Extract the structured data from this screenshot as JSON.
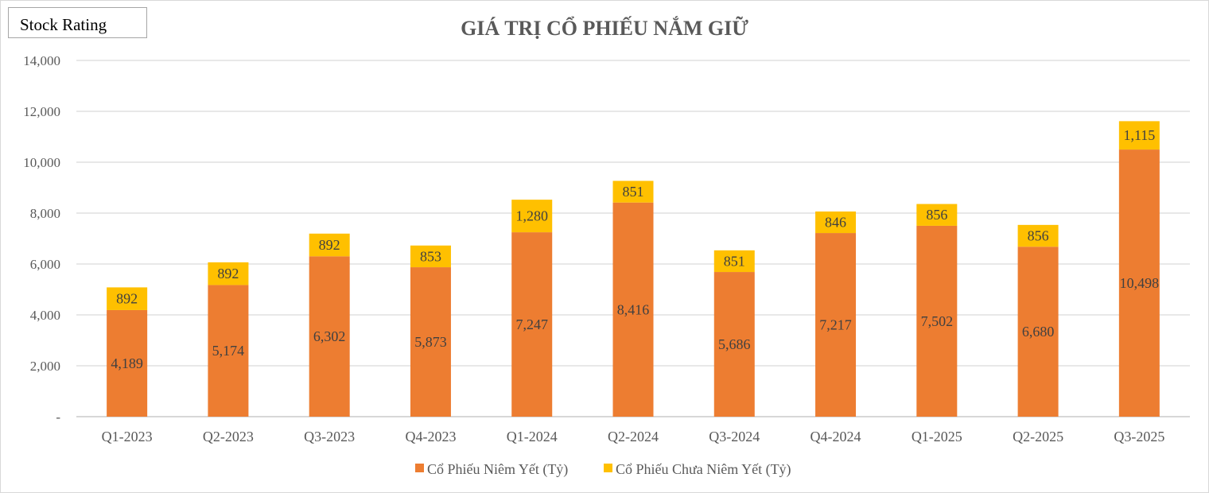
{
  "badge": {
    "label": "Stock Rating"
  },
  "chart_data": {
    "type": "bar",
    "stacked": true,
    "title": "GIÁ TRỊ CỔ PHIẾU NẮM GIỮ",
    "categories": [
      "Q1-2023",
      "Q2-2023",
      "Q3-2023",
      "Q4-2023",
      "Q1-2024",
      "Q2-2024",
      "Q3-2024",
      "Q4-2024",
      "Q1-2025",
      "Q2-2025",
      "Q3-2025"
    ],
    "series": [
      {
        "name": "Cổ Phiếu Niêm Yết (Tỷ)",
        "color": "#ed7d31",
        "values": [
          4189,
          5174,
          6302,
          5873,
          7247,
          8416,
          5686,
          7217,
          7502,
          6680,
          10498
        ]
      },
      {
        "name": "Cổ Phiếu Chưa Niêm Yết (Tỷ)",
        "color": "#ffc000",
        "values": [
          892,
          892,
          892,
          853,
          1280,
          851,
          851,
          846,
          856,
          856,
          1115
        ]
      }
    ],
    "ylim": [
      0,
      14000
    ],
    "yticks": [
      0,
      2000,
      4000,
      6000,
      8000,
      10000,
      12000,
      14000
    ],
    "ytick_labels": [
      "-",
      "2,000",
      "4,000",
      "6,000",
      "8,000",
      "10,000",
      "12,000",
      "14,000"
    ],
    "grid": true,
    "legend_position": "bottom",
    "xlabel": "",
    "ylabel": ""
  }
}
